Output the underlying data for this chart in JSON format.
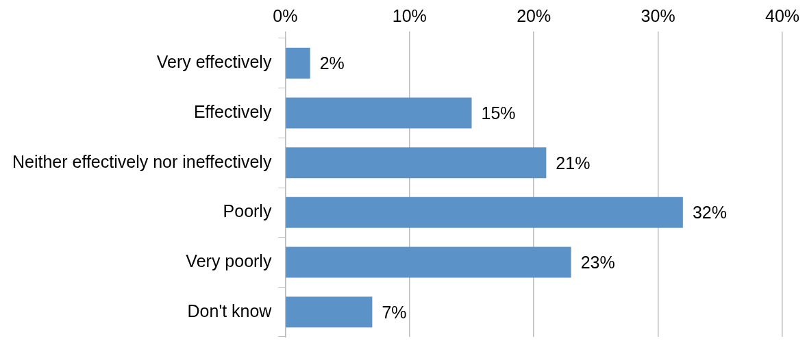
{
  "chart_data": {
    "type": "bar",
    "orientation": "horizontal",
    "categories": [
      "Very effectively",
      "Effectively",
      "Neither effectively nor ineffectively",
      "Poorly",
      "Very poorly",
      "Don't know"
    ],
    "values": [
      2,
      15,
      21,
      32,
      23,
      7
    ],
    "value_labels": [
      "2%",
      "15%",
      "21%",
      "32%",
      "23%",
      "7%"
    ],
    "color": "#5b93c9",
    "xlim": [
      0,
      40
    ],
    "xticks": [
      {
        "value": 0,
        "label": "0%"
      },
      {
        "value": 10,
        "label": "10%"
      },
      {
        "value": 20,
        "label": "20%"
      },
      {
        "value": 30,
        "label": "30%"
      },
      {
        "value": 40,
        "label": "40%"
      }
    ],
    "grid": "x",
    "legend": false
  }
}
